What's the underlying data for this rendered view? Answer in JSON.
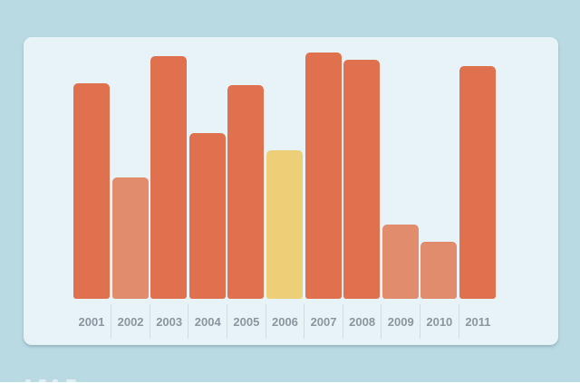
{
  "page": {
    "background": "#b9d9e3"
  },
  "card": {
    "background": "#e8f3f8",
    "shadow": "rgba(80,110,122,0.35)"
  },
  "colors": {
    "orange": "#e0714e",
    "salmon": "#e28c6e",
    "yellow": "#eccf77",
    "label_text": "#8b959d",
    "divider": "#cfdce2"
  },
  "chart_data": {
    "type": "bar",
    "title": "",
    "xlabel": "",
    "ylabel": "",
    "grid": false,
    "legend": false,
    "categories": [
      "2001",
      "2002",
      "2003",
      "2004",
      "2005",
      "2006",
      "2007",
      "2008",
      "2009",
      "2010",
      "2011"
    ],
    "values": [
      238,
      134,
      268,
      183,
      236,
      164,
      272,
      264,
      82,
      63,
      257
    ],
    "values_normalized_pct": [
      87,
      49,
      99,
      67,
      87,
      60,
      100,
      97,
      30,
      23,
      94
    ],
    "bar_colors": [
      "orange",
      "salmon",
      "orange",
      "orange",
      "orange",
      "yellow",
      "orange",
      "orange",
      "salmon",
      "salmon",
      "orange"
    ],
    "ylim": [
      0,
      290
    ]
  }
}
